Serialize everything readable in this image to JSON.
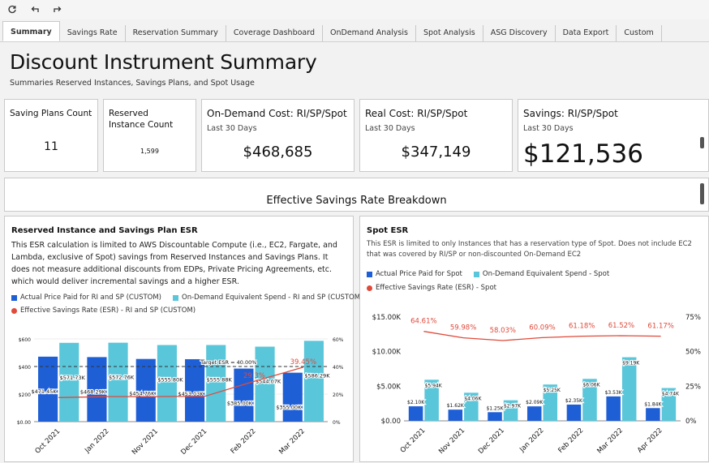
{
  "toolbar": {
    "refresh_icon": "refresh-icon",
    "undo_icon": "undo-icon",
    "redo_icon": "redo-icon"
  },
  "tabs": [
    {
      "label": "Summary",
      "active": true
    },
    {
      "label": "Savings Rate"
    },
    {
      "label": "Reservation Summary"
    },
    {
      "label": "Coverage Dashboard"
    },
    {
      "label": "OnDemand Analysis"
    },
    {
      "label": "Spot Analysis"
    },
    {
      "label": "ASG Discovery"
    },
    {
      "label": "Data Export"
    },
    {
      "label": "Custom"
    }
  ],
  "header": {
    "title": "Discount Instrument Summary",
    "subtitle": "Summaries Reserved Instances, Savings Plans, and Spot Usage"
  },
  "kpis": {
    "savings_plans": {
      "title": "Saving Plans Count",
      "value": "11"
    },
    "reserved": {
      "title": "Reserved Instance Count",
      "value": "1,599"
    },
    "ondemand": {
      "title": "On-Demand Cost: RI/SP/Spot",
      "sub": "Last 30 Days",
      "value": "$468,685"
    },
    "realcost": {
      "title": "Real Cost: RI/SP/Spot",
      "sub": "Last 30 Days",
      "value": "$347,149"
    },
    "savings": {
      "title": "Savings: RI/SP/Spot",
      "sub": "Last 30 Days",
      "value": "$121,536"
    }
  },
  "esr_section": {
    "title": "Effective Savings Rate Breakdown"
  },
  "left_panel": {
    "title": "Reserved Instance and Savings Plan ESR",
    "desc": "This ESR calculation is limited to AWS Discountable Compute (i.e., EC2, Fargate, and Lambda, exclusive of Spot) savings from Reserved Instances and Savings Plans. It does not measure additional discounts from EDPs, Private Pricing Agreements, etc. which would deliver incremental savings and a higher ESR.",
    "legend": {
      "actual": "Actual Price Paid for RI and SP (CUSTOM)",
      "ondemand": "On-Demand Equivalent Spend - RI and SP (CUSTOM)",
      "esr": "Effective Savings Rate (ESR) - RI and SP (CUSTOM)"
    }
  },
  "right_panel": {
    "title": "Spot ESR",
    "desc": "This ESR is limited to only Instances that has a reservation type of Spot. Does not include EC2 that was covered by RI/SP or non-discounted On-Demand EC2",
    "legend": {
      "actual": "Actual Price Paid for Spot",
      "ondemand": "On-Demand Equivalent Spend - Spot",
      "esr": "Effective Savings Rate (ESR) - Spot"
    }
  },
  "colors": {
    "actual": "#1f5fd6",
    "ondemand": "#5ac6d9",
    "esr": "#e04a3b"
  },
  "chart_data": [
    {
      "type": "bar",
      "title": "Reserved Instance and Savings Plan ESR",
      "categories": [
        "Oct 2021",
        "Jan 2022",
        "Nov 2021",
        "Dec 2021",
        "Feb 2022",
        "Mar 2022"
      ],
      "series": [
        {
          "name": "Actual Price Paid for RI and SP (CUSTOM)",
          "values": [
            471.45,
            468.29,
            454.76,
            453.03,
            385.0,
            355.0
          ],
          "labels": [
            "$471.45K",
            "$468.29K",
            "$454.76K",
            "$453.03K",
            "$385.00K",
            "$355.00K"
          ]
        },
        {
          "name": "On-Demand Equivalent Spend - RI and SP (CUSTOM)",
          "values": [
            571.73,
            572.76,
            555.8,
            555.88,
            544.07,
            586.29
          ],
          "labels": [
            "$571.73K",
            "$572.76K",
            "$555.80K",
            "$555.88K",
            "$544.07K",
            "$586.29K"
          ]
        },
        {
          "name": "Effective Savings Rate (ESR) - RI and SP (CUSTOM)",
          "values": [
            17.5,
            18.2,
            18.2,
            18.5,
            29.3,
            39.45
          ],
          "labels": [
            "",
            "",
            "",
            "",
            "29.3%",
            "39.45%"
          ],
          "axis": "right"
        }
      ],
      "target": {
        "label": "Target ESR = 40.00%",
        "value": 40
      },
      "y_left_ticks": [
        "$0.00",
        "$200",
        "$400",
        "$600"
      ],
      "y_right_ticks": [
        "0%",
        "20%",
        "40%",
        "60%"
      ],
      "ylim": [
        0,
        600
      ],
      "y2lim": [
        0,
        60
      ]
    },
    {
      "type": "bar",
      "title": "Spot ESR",
      "categories": [
        "Oct 2021",
        "Nov 2021",
        "Dec 2021",
        "Jan 2022",
        "Feb 2022",
        "Mar 2022",
        "Apr 2022"
      ],
      "series": [
        {
          "name": "Actual Price Paid for Spot",
          "values": [
            2.1,
            1.62,
            1.25,
            2.09,
            2.35,
            3.53,
            1.84
          ],
          "labels": [
            "$2.10K",
            "$1.62K",
            "$1.25K",
            "$2.09K",
            "$2.35K",
            "$3.53K",
            "$1.84K"
          ]
        },
        {
          "name": "On-Demand Equivalent Spend - Spot",
          "values": [
            5.94,
            4.06,
            2.97,
            5.25,
            6.06,
            9.19,
            4.74
          ],
          "labels": [
            "$5.94K",
            "$4.06K",
            "$2.97K",
            "$5.25K",
            "$6.06K",
            "$9.19K",
            "$4.74K"
          ]
        },
        {
          "name": "Effective Savings Rate (ESR) - Spot",
          "values": [
            64.61,
            59.98,
            58.03,
            60.09,
            61.18,
            61.52,
            61.17
          ],
          "labels": [
            "64.61%",
            "59.98%",
            "58.03%",
            "60.09%",
            "61.18%",
            "61.52%",
            "61.17%"
          ],
          "axis": "right"
        }
      ],
      "y_left_ticks": [
        "$0.00",
        "$5.00K",
        "$10.00K",
        "$15.00K"
      ],
      "y_right_ticks": [
        "0%",
        "25%",
        "50%",
        "75%"
      ],
      "ylim": [
        0,
        15
      ],
      "y2lim": [
        0,
        75
      ]
    }
  ]
}
